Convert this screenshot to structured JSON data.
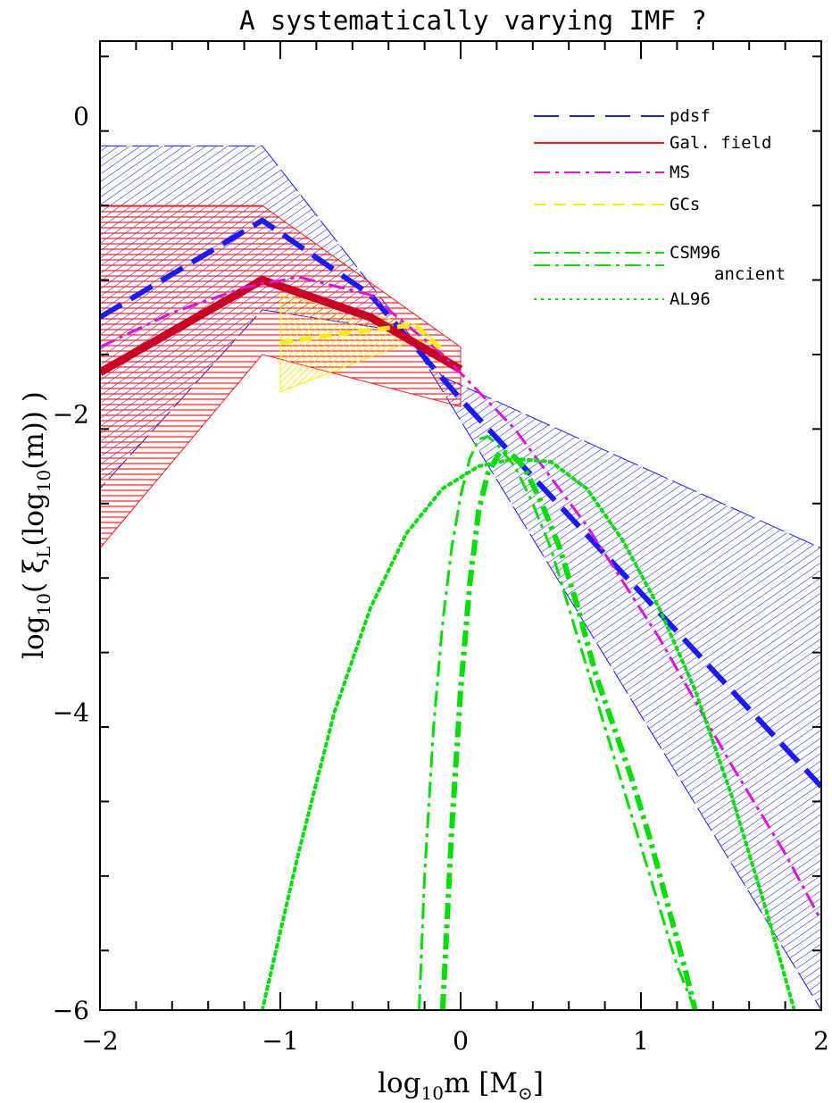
{
  "chart_data": {
    "type": "line",
    "title": "A systematically varying IMF ?",
    "xlabel": {
      "pre": "log",
      "sub": "10",
      "post": "m [M",
      "suffix": "]"
    },
    "ylabel": {
      "a": "log",
      "a_sub": "10",
      "b": "( ξ",
      "b_sub": "L",
      "c": "(log",
      "c_sub": "10",
      "d": "(m)) )"
    },
    "xlim": [
      -2,
      2
    ],
    "ylim": [
      -6,
      0.5
    ],
    "x_ticks": [
      -2,
      -1,
      0,
      1,
      2
    ],
    "x_tick_labels": [
      "−2",
      "−1",
      "0",
      "1",
      "2"
    ],
    "y_ticks": [
      0,
      -2,
      -4,
      -6
    ],
    "y_tick_labels": [
      "0",
      "−2",
      "−4",
      "−6"
    ],
    "grid": false,
    "legend_position": "top-right",
    "legend": [
      {
        "label": "pdsf",
        "color": "#1a1aff",
        "dash": "long-dash"
      },
      {
        "label": "Gal. field",
        "color": "#ff1a1a",
        "dash": "solid"
      },
      {
        "label": "MS",
        "color": "#e010e0",
        "dash": "dash-dot"
      },
      {
        "label": "GCs",
        "color": "#ffee00",
        "dash": "dash"
      },
      {
        "label": "CSM96",
        "label2": "ancient",
        "color": "#00e000",
        "dash": "dash-dot"
      },
      {
        "label": "AL96",
        "color": "#00e000",
        "dash": "dotted"
      }
    ],
    "bands": [
      {
        "name": "pdsf",
        "color": "#1a1aff",
        "polygon": [
          [
            -2,
            -0.2
          ],
          [
            -1.1,
            -0.2
          ],
          [
            -0.1,
            -1.75
          ],
          [
            2,
            -2.9
          ],
          [
            2,
            -6
          ],
          [
            -0.3,
            -1.45
          ],
          [
            -1.1,
            -1.3
          ],
          [
            -2,
            -2.5
          ]
        ]
      },
      {
        "name": "Gal. field",
        "color": "#ff1a1a",
        "polygon": [
          [
            -2,
            -0.6
          ],
          [
            -1.1,
            -0.6
          ],
          [
            0,
            -1.55
          ],
          [
            0,
            -1.95
          ],
          [
            -1.1,
            -1.6
          ],
          [
            -2,
            -2.9
          ]
        ]
      },
      {
        "name": "GCs",
        "color": "#ffee00",
        "polygon": [
          [
            -1,
            -1.2
          ],
          [
            -0.25,
            -1.4
          ],
          [
            -0.1,
            -1.55
          ],
          [
            -0.25,
            -1.5
          ],
          [
            -1,
            -1.85
          ]
        ]
      }
    ],
    "series": [
      {
        "name": "pdsf",
        "color": "#1a1aff",
        "dash": "long-dash",
        "width": 6,
        "x": [
          -2,
          -1.1,
          -0.5,
          0,
          0.5,
          1,
          1.5,
          2
        ],
        "y": [
          -1.35,
          -0.7,
          -1.2,
          -1.9,
          -2.55,
          -3.2,
          -3.85,
          -4.5
        ]
      },
      {
        "name": "Gal. field",
        "color": "#cc0022",
        "dash": "solid",
        "width": 9,
        "x": [
          -2,
          -1.1,
          -0.5,
          0
        ],
        "y": [
          -1.72,
          -1.1,
          -1.35,
          -1.7
        ]
      },
      {
        "name": "MS",
        "color": "#e010e0",
        "dash": "dash-dot",
        "width": 3,
        "x": [
          -2,
          -1.6,
          -1.2,
          -0.9,
          -0.5,
          -0.1,
          0.3,
          0.7,
          1.1,
          1.5,
          1.8,
          2
        ],
        "y": [
          -1.55,
          -1.32,
          -1.15,
          -1.08,
          -1.2,
          -1.6,
          -2.1,
          -2.75,
          -3.5,
          -4.35,
          -4.95,
          -5.4
        ]
      },
      {
        "name": "GCs",
        "color": "#ffee00",
        "dash": "dash",
        "width": 5,
        "x": [
          -1,
          -0.6,
          -0.25,
          -0.1
        ],
        "y": [
          -1.52,
          -1.45,
          -1.4,
          -1.58
        ]
      },
      {
        "name": "CSM96",
        "color": "#00e000",
        "dash": "dash-dot",
        "width": 6,
        "x": [
          -0.1,
          -0.05,
          0,
          0.05,
          0.1,
          0.15,
          0.22,
          0.28,
          0.35,
          0.45,
          0.55,
          0.65,
          0.75,
          0.85,
          0.95,
          1.05,
          1.15,
          1.25,
          1.3
        ],
        "y": [
          -6,
          -4.8,
          -3.85,
          -3.15,
          -2.65,
          -2.4,
          -2.25,
          -2.27,
          -2.35,
          -2.6,
          -2.9,
          -3.3,
          -3.75,
          -4.1,
          -4.45,
          -4.85,
          -5.3,
          -5.75,
          -6
        ]
      },
      {
        "name": "CSM96 ancient",
        "color": "#00e000",
        "dash": "dash-dot",
        "width": 3,
        "x": [
          -0.23,
          -0.2,
          -0.15,
          -0.1,
          -0.05,
          0,
          0.05,
          0.1,
          0.15,
          0.2,
          0.3,
          0.4,
          0.5,
          0.6,
          0.7,
          0.8,
          0.9,
          1.0,
          1.1,
          1.2,
          1.3
        ],
        "y": [
          -6,
          -5.1,
          -4.1,
          -3.4,
          -2.9,
          -2.55,
          -2.3,
          -2.17,
          -2.15,
          -2.2,
          -2.35,
          -2.6,
          -2.9,
          -3.3,
          -3.7,
          -4.1,
          -4.5,
          -4.9,
          -5.3,
          -5.7,
          -6
        ]
      },
      {
        "name": "AL96",
        "color": "#00e000",
        "dash": "dotted",
        "width": 4,
        "x": [
          -1.1,
          -0.9,
          -0.7,
          -0.5,
          -0.3,
          -0.1,
          0.1,
          0.3,
          0.5,
          0.7,
          0.9,
          1.1,
          1.3,
          1.5,
          1.7,
          1.85
        ],
        "y": [
          -6,
          -4.95,
          -4.0,
          -3.3,
          -2.8,
          -2.5,
          -2.35,
          -2.3,
          -2.32,
          -2.5,
          -2.85,
          -3.3,
          -3.85,
          -4.55,
          -5.35,
          -6
        ]
      }
    ]
  }
}
